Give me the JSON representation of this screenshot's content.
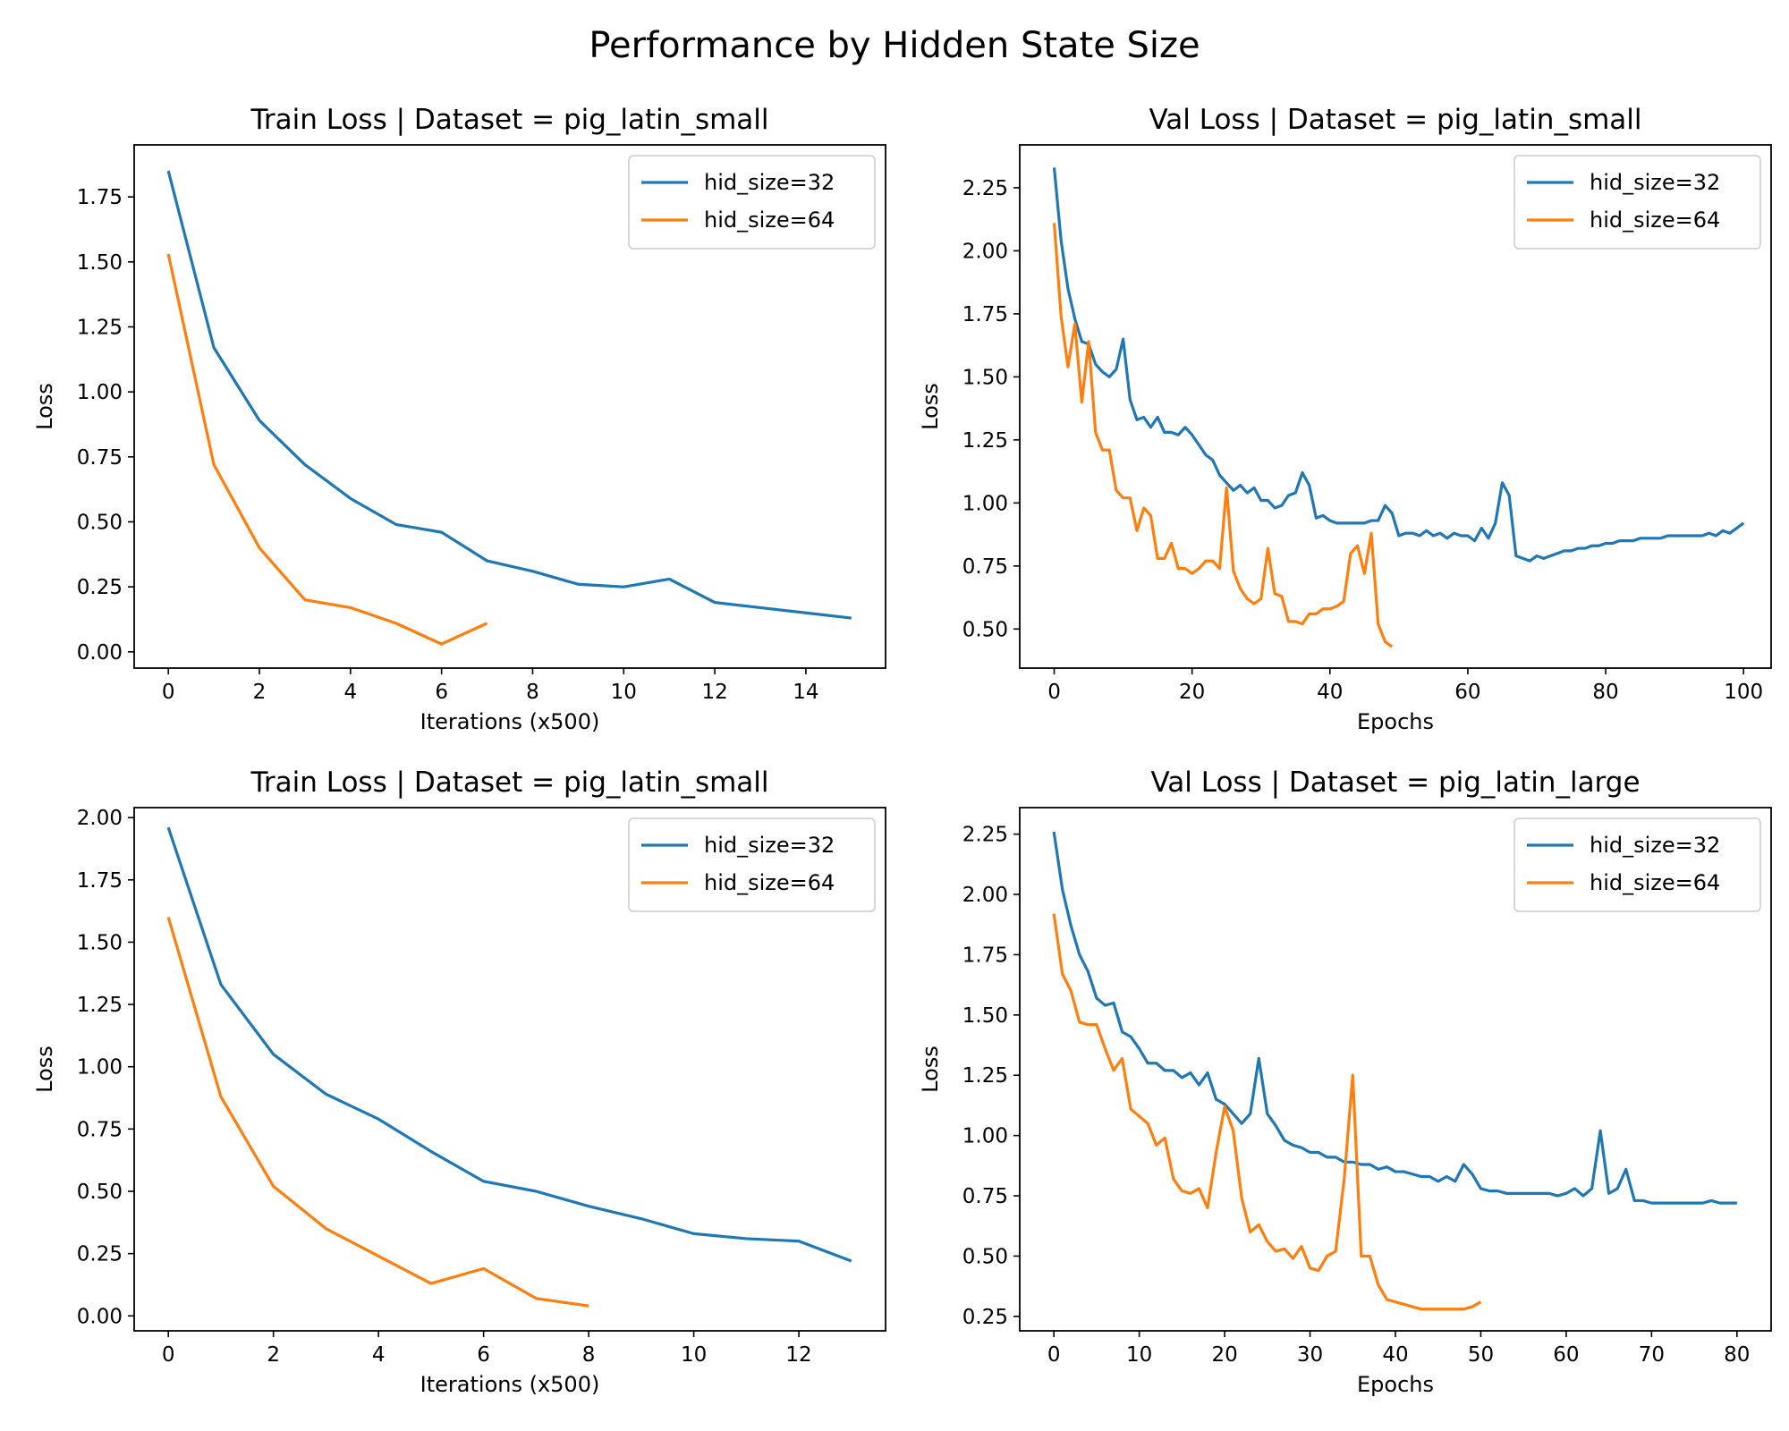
{
  "suptitle": "Performance by Hidden State Size",
  "colors": {
    "series32": "#1f77b4",
    "series64": "#ff7f0e",
    "axis": "#000000"
  },
  "chart_data": [
    {
      "type": "line",
      "title": "Train Loss | Dataset = pig_latin_small",
      "xlabel": "Iterations (x500)",
      "ylabel": "Loss",
      "xlim": [
        -0.75,
        15.75
      ],
      "ylim": [
        -0.0625,
        1.95
      ],
      "xticks": [
        0,
        2,
        4,
        6,
        8,
        10,
        12,
        14
      ],
      "yticks": [
        0.0,
        0.25,
        0.5,
        0.75,
        1.0,
        1.25,
        1.5,
        1.75
      ],
      "ytick_labels": [
        "0.00",
        "0.25",
        "0.50",
        "0.75",
        "1.00",
        "1.25",
        "1.50",
        "1.75"
      ],
      "legend": "top-right",
      "series": [
        {
          "name": "hid_size=32",
          "x": [
            0,
            1,
            2,
            3,
            4,
            5,
            6,
            7,
            8,
            9,
            10,
            11,
            12,
            13,
            14,
            15
          ],
          "y": [
            1.85,
            1.17,
            0.89,
            0.72,
            0.59,
            0.49,
            0.46,
            0.35,
            0.31,
            0.26,
            0.25,
            0.28,
            0.19,
            0.17,
            0.15,
            0.13
          ]
        },
        {
          "name": "hid_size=64",
          "x": [
            0,
            1,
            2,
            3,
            4,
            5,
            6,
            7
          ],
          "y": [
            1.53,
            0.72,
            0.4,
            0.2,
            0.17,
            0.11,
            0.03,
            0.11
          ]
        }
      ]
    },
    {
      "type": "line",
      "title": "Val Loss | Dataset = pig_latin_small",
      "xlabel": "Epochs",
      "ylabel": "Loss",
      "xlim": [
        -5,
        104
      ],
      "ylim": [
        0.345,
        2.42
      ],
      "xticks": [
        0,
        20,
        40,
        60,
        80,
        100
      ],
      "yticks": [
        0.5,
        0.75,
        1.0,
        1.25,
        1.5,
        1.75,
        2.0,
        2.25
      ],
      "ytick_labels": [
        "0.50",
        "0.75",
        "1.00",
        "1.25",
        "1.50",
        "1.75",
        "2.00",
        "2.25"
      ],
      "legend": "top-right",
      "series": [
        {
          "name": "hid_size=32",
          "x_start": 0,
          "x_step": 1,
          "y": [
            2.33,
            2.04,
            1.85,
            1.73,
            1.64,
            1.63,
            1.55,
            1.52,
            1.5,
            1.53,
            1.65,
            1.41,
            1.33,
            1.34,
            1.3,
            1.34,
            1.28,
            1.28,
            1.27,
            1.3,
            1.27,
            1.23,
            1.19,
            1.17,
            1.11,
            1.08,
            1.05,
            1.07,
            1.04,
            1.06,
            1.01,
            1.01,
            0.98,
            0.99,
            1.03,
            1.04,
            1.12,
            1.07,
            0.94,
            0.95,
            0.93,
            0.92,
            0.92,
            0.92,
            0.92,
            0.92,
            0.93,
            0.93,
            0.99,
            0.96,
            0.87,
            0.88,
            0.88,
            0.87,
            0.89,
            0.87,
            0.88,
            0.86,
            0.88,
            0.87,
            0.87,
            0.85,
            0.9,
            0.86,
            0.92,
            1.08,
            1.03,
            0.79,
            0.78,
            0.77,
            0.79,
            0.78,
            0.79,
            0.8,
            0.81,
            0.81,
            0.82,
            0.82,
            0.83,
            0.83,
            0.84,
            0.84,
            0.85,
            0.85,
            0.85,
            0.86,
            0.86,
            0.86,
            0.86,
            0.87,
            0.87,
            0.87,
            0.87,
            0.87,
            0.87,
            0.88,
            0.87,
            0.89,
            0.88,
            0.9,
            0.92
          ]
        },
        {
          "name": "hid_size=64",
          "x_start": 0,
          "x_step": 1,
          "y": [
            2.11,
            1.74,
            1.54,
            1.71,
            1.4,
            1.64,
            1.28,
            1.21,
            1.21,
            1.05,
            1.02,
            1.02,
            0.89,
            0.98,
            0.95,
            0.78,
            0.78,
            0.84,
            0.74,
            0.74,
            0.72,
            0.74,
            0.77,
            0.77,
            0.74,
            1.06,
            0.73,
            0.66,
            0.62,
            0.6,
            0.62,
            0.82,
            0.64,
            0.63,
            0.53,
            0.53,
            0.52,
            0.56,
            0.56,
            0.58,
            0.58,
            0.59,
            0.61,
            0.8,
            0.83,
            0.72,
            0.88,
            0.52,
            0.45,
            0.43
          ]
        }
      ]
    },
    {
      "type": "line",
      "title": "Train Loss | Dataset = pig_latin_small",
      "xlabel": "Iterations (x500)",
      "ylabel": "Loss",
      "xlim": [
        -0.65,
        13.65
      ],
      "ylim": [
        -0.06,
        2.04
      ],
      "xticks": [
        0,
        2,
        4,
        6,
        8,
        10,
        12
      ],
      "yticks": [
        0.0,
        0.25,
        0.5,
        0.75,
        1.0,
        1.25,
        1.5,
        1.75,
        2.0
      ],
      "ytick_labels": [
        "0.00",
        "0.25",
        "0.50",
        "0.75",
        "1.00",
        "1.25",
        "1.50",
        "1.75",
        "2.00"
      ],
      "legend": "top-right",
      "series": [
        {
          "name": "hid_size=32",
          "x": [
            0,
            1,
            2,
            3,
            4,
            5,
            6,
            7,
            8,
            9,
            10,
            11,
            12,
            13
          ],
          "y": [
            1.96,
            1.33,
            1.05,
            0.89,
            0.79,
            0.66,
            0.54,
            0.5,
            0.44,
            0.39,
            0.33,
            0.31,
            0.3,
            0.22
          ]
        },
        {
          "name": "hid_size=64",
          "x": [
            0,
            1,
            2,
            3,
            4,
            5,
            6,
            7,
            8
          ],
          "y": [
            1.6,
            0.88,
            0.52,
            0.35,
            0.24,
            0.13,
            0.19,
            0.07,
            0.04
          ]
        }
      ]
    },
    {
      "type": "line",
      "title": "Val Loss | Dataset = pig_latin_large",
      "xlabel": "Epochs",
      "ylabel": "Loss",
      "xlim": [
        -4,
        84
      ],
      "ylim": [
        0.19,
        2.36
      ],
      "xticks": [
        0,
        10,
        20,
        30,
        40,
        50,
        60,
        70,
        80
      ],
      "yticks": [
        0.25,
        0.5,
        0.75,
        1.0,
        1.25,
        1.5,
        1.75,
        2.0,
        2.25
      ],
      "ytick_labels": [
        "0.25",
        "0.50",
        "0.75",
        "1.00",
        "1.25",
        "1.50",
        "1.75",
        "2.00",
        "2.25"
      ],
      "legend": "top-right",
      "series": [
        {
          "name": "hid_size=32",
          "x_start": 0,
          "x_step": 1,
          "y": [
            2.26,
            2.02,
            1.87,
            1.75,
            1.68,
            1.57,
            1.54,
            1.55,
            1.43,
            1.41,
            1.36,
            1.3,
            1.3,
            1.27,
            1.27,
            1.24,
            1.26,
            1.21,
            1.26,
            1.15,
            1.13,
            1.09,
            1.05,
            1.09,
            1.32,
            1.09,
            1.04,
            0.98,
            0.96,
            0.95,
            0.93,
            0.93,
            0.91,
            0.91,
            0.89,
            0.89,
            0.88,
            0.88,
            0.86,
            0.87,
            0.85,
            0.85,
            0.84,
            0.83,
            0.83,
            0.81,
            0.83,
            0.81,
            0.88,
            0.84,
            0.78,
            0.77,
            0.77,
            0.76,
            0.76,
            0.76,
            0.76,
            0.76,
            0.76,
            0.75,
            0.76,
            0.78,
            0.75,
            0.78,
            1.02,
            0.76,
            0.78,
            0.86,
            0.73,
            0.73,
            0.72,
            0.72,
            0.72,
            0.72,
            0.72,
            0.72,
            0.72,
            0.73,
            0.72,
            0.72,
            0.72
          ]
        },
        {
          "name": "hid_size=64",
          "x_start": 0,
          "x_step": 1,
          "y": [
            1.92,
            1.67,
            1.6,
            1.47,
            1.46,
            1.46,
            1.36,
            1.27,
            1.32,
            1.11,
            1.08,
            1.05,
            0.96,
            0.99,
            0.82,
            0.77,
            0.76,
            0.78,
            0.7,
            0.93,
            1.12,
            1.02,
            0.74,
            0.6,
            0.63,
            0.56,
            0.52,
            0.53,
            0.49,
            0.54,
            0.45,
            0.44,
            0.5,
            0.52,
            0.82,
            1.25,
            0.5,
            0.5,
            0.38,
            0.32,
            0.31,
            0.3,
            0.29,
            0.28,
            0.28,
            0.28,
            0.28,
            0.28,
            0.28,
            0.29,
            0.31
          ]
        }
      ]
    }
  ]
}
